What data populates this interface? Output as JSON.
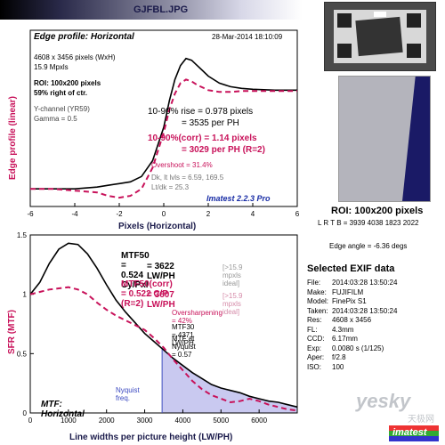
{
  "header": {
    "filename": "GJFBL.JPG"
  },
  "colors": {
    "measured": "#000000",
    "corrected": "#c8125a",
    "accent": "#1a2ea6",
    "nyquist_fill": "#c9c9f0"
  },
  "edge_panel": {
    "title": "Edge profile: Horizontal",
    "date": "28-Mar-2014 18:10:09",
    "info": [
      "4608 x 3456 pixels (WxH)",
      "15.9 Mpxls"
    ],
    "roi": [
      "ROI: 100x200 pixels",
      "59% right of ctr."
    ],
    "channel": [
      "Y-channel  (YR59)",
      "Gamma = 0.5"
    ],
    "rise": [
      "10-90% rise = 0.978 pixels",
      "= 3535 per PH"
    ],
    "rise_corr": [
      "10-90%(corr) = 1.14 pixels",
      "= 3029 per PH  (R=2)"
    ],
    "overshoot": "Overshoot = 31.4%",
    "dk": [
      "Dk, lt lvls = 6.59, 169.5",
      "Lt/dk = 25.3"
    ],
    "version": "Imatest 2.2.3 Pro"
  },
  "sfr_panel": {
    "title": "MTF: Horizontal",
    "mtf50": [
      "MTF50 = 0.524 Cy/Pxl",
      "= 3622 LW/PH"
    ],
    "mtf50_note": "[>15.9 mpxls ideal]",
    "mtf50_corr": [
      "MTF50(corr) = 0.522 C/P  (R=2)",
      "= 3607 LW/PH"
    ],
    "mtf50_corr_note": "[>15.9 mpxls ideal]",
    "oversharpening": "Oversharpening = 42%",
    "mtf30": "MTF30 = 4371 LW/PH",
    "nyquist_mtf": "MTF at Nyquist = 0.57",
    "nyquist_label": "Nyquist freq."
  },
  "roi_image": {
    "caption": "ROI: 100x200 pixels",
    "coords": "L R T B = 3939 4038  1823 2022",
    "edge_angle": "Edge angle = -6.36 degs"
  },
  "exif": {
    "title": "Selected EXIF data",
    "rows": [
      {
        "k": "File:",
        "v": "2014:03:28 13:50:24"
      },
      {
        "k": "Make:",
        "v": "FUJIFILM"
      },
      {
        "k": "Model:",
        "v": "FinePix S1"
      },
      {
        "k": "Taken:",
        "v": "2014:03:28 13:50:24"
      },
      {
        "k": "Res:",
        "v": "4608 x 3456"
      },
      {
        "k": "FL:",
        "v": "4.3mm"
      },
      {
        "k": "CCD:",
        "v": "6.17mm"
      },
      {
        "k": "Exp:",
        "v": "0.0080 s  (1/125)"
      },
      {
        "k": "Aper:",
        "v": "f/2.8"
      },
      {
        "k": "ISO:",
        "v": "100"
      }
    ]
  },
  "watermark": {
    "brand": "yesky",
    "sub": "天极网",
    "badge": "imatest"
  },
  "chart_data": [
    {
      "type": "line",
      "title": "Edge profile: Horizontal",
      "xlabel": "Pixels (Horizontal)",
      "ylabel": "Edge profile (linear)",
      "xlim": [
        -6,
        6
      ],
      "ylim": [
        0,
        1
      ],
      "x_ticks": [
        "-6",
        "-4",
        "-2",
        "0",
        "2",
        "4",
        "6"
      ],
      "grid": false,
      "series": [
        {
          "style": "solid",
          "x": [
            -6,
            -5,
            -4,
            -3,
            -2.5,
            -2,
            -1.5,
            -1,
            -0.5,
            0,
            0.25,
            0.5,
            0.75,
            1,
            1.25,
            1.5,
            1.75,
            2,
            2.5,
            3,
            3.5,
            4,
            5,
            6
          ],
          "y": [
            0.1,
            0.1,
            0.1,
            0.11,
            0.12,
            0.13,
            0.14,
            0.17,
            0.26,
            0.45,
            0.6,
            0.72,
            0.8,
            0.84,
            0.83,
            0.8,
            0.77,
            0.74,
            0.7,
            0.68,
            0.67,
            0.665,
            0.66,
            0.66
          ]
        },
        {
          "style": "dashed",
          "x": [
            -6,
            -5,
            -4,
            -3,
            -2.5,
            -2,
            -1.5,
            -1,
            -0.5,
            0,
            0.25,
            0.5,
            0.75,
            1,
            1.25,
            1.5,
            2,
            2.5,
            3,
            3.5,
            4,
            5,
            6
          ],
          "y": [
            0.1,
            0.1,
            0.09,
            0.08,
            0.06,
            0.05,
            0.06,
            0.1,
            0.22,
            0.42,
            0.55,
            0.64,
            0.7,
            0.72,
            0.71,
            0.69,
            0.66,
            0.65,
            0.65,
            0.655,
            0.655,
            0.655,
            0.655
          ]
        }
      ]
    },
    {
      "type": "line",
      "title": "MTF: Horizontal",
      "xlabel": "Line widths per picture height (LW/PH)",
      "ylabel": "SFR (MTF)",
      "xlim": [
        0,
        7000
      ],
      "ylim": [
        0,
        1.5
      ],
      "x_ticks": [
        "0",
        "1000",
        "2000",
        "3000",
        "4000",
        "5000",
        "6000"
      ],
      "y_ticks": [
        "0",
        "0.5",
        "1",
        "1.5"
      ],
      "grid": false,
      "nyquist_x": 3456,
      "series": [
        {
          "style": "solid",
          "x": [
            0,
            250,
            500,
            750,
            1000,
            1250,
            1500,
            1750,
            2000,
            2250,
            2500,
            2750,
            3000,
            3250,
            3500,
            3750,
            4000,
            4250,
            4500,
            4750,
            5000,
            5250,
            5500,
            5750,
            6000,
            6250,
            6500,
            6750,
            7000
          ],
          "y": [
            1.0,
            1.1,
            1.26,
            1.38,
            1.43,
            1.42,
            1.34,
            1.22,
            1.08,
            0.95,
            0.85,
            0.76,
            0.67,
            0.6,
            0.53,
            0.46,
            0.4,
            0.34,
            0.29,
            0.24,
            0.21,
            0.19,
            0.17,
            0.14,
            0.12,
            0.1,
            0.09,
            0.07,
            0.05
          ]
        },
        {
          "style": "dashed",
          "x": [
            0,
            250,
            500,
            750,
            1000,
            1250,
            1500,
            1750,
            2000,
            2250,
            2500,
            2750,
            3000,
            3250,
            3500,
            3750,
            4000,
            4250,
            4500,
            4750,
            5000,
            5250,
            5500,
            5750,
            6000,
            6250,
            6500,
            6750,
            7000
          ],
          "y": [
            1.0,
            1.02,
            1.04,
            1.05,
            1.06,
            1.04,
            1.0,
            0.93,
            0.87,
            0.82,
            0.78,
            0.74,
            0.7,
            0.63,
            0.55,
            0.45,
            0.36,
            0.27,
            0.2,
            0.15,
            0.12,
            0.09,
            0.1,
            0.12,
            0.1,
            0.07,
            0.05,
            0.03,
            0.02
          ]
        }
      ]
    }
  ]
}
